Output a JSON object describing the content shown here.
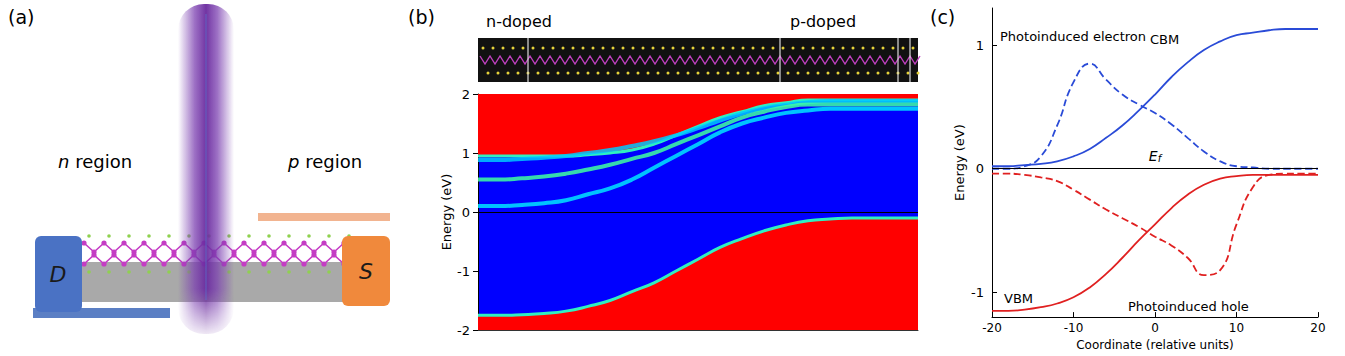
{
  "panel_labels": [
    "(a)",
    "(b)",
    "(c)"
  ],
  "diagram": {
    "regions": [
      "n region",
      "p region"
    ],
    "drain": "D",
    "source": "S"
  },
  "chart_data": [
    {
      "type": "area",
      "top_labels": [
        "n-doped",
        "p-doped"
      ],
      "ylabel": "Energy (eV)",
      "x": [
        0,
        1,
        2,
        3,
        4,
        5,
        6,
        7,
        8,
        9,
        10,
        11,
        12,
        13,
        14,
        15,
        16,
        17,
        18,
        19,
        20
      ],
      "xlim": [
        0,
        20
      ],
      "ylim": [
        -2,
        2
      ],
      "yticks": [
        -2,
        -1,
        0,
        1,
        2
      ],
      "tick_labels": "y",
      "hline": 0,
      "series": [
        {
          "type": "area_above",
          "color": "#ff0000",
          "values": [
            0.95,
            0.95,
            0.95,
            0.95,
            0.95,
            0.97,
            1.0,
            1.05,
            1.15,
            1.3,
            1.45,
            1.6,
            1.7,
            1.8,
            1.85,
            1.9,
            1.9,
            1.9,
            1.9,
            1.9,
            1.9
          ]
        },
        {
          "type": "area_below",
          "color": "#ff0000",
          "values": [
            -1.75,
            -1.75,
            -1.74,
            -1.72,
            -1.68,
            -1.6,
            -1.5,
            -1.35,
            -1.2,
            -1.0,
            -0.8,
            -0.6,
            -0.45,
            -0.32,
            -0.22,
            -0.15,
            -0.12,
            -0.1,
            -0.1,
            -0.1,
            -0.1
          ]
        },
        {
          "type": "line",
          "color": "#00c8ff",
          "values": [
            0.88,
            0.88,
            0.9,
            0.92,
            0.95,
            1.0,
            1.05,
            1.12,
            1.2,
            1.3,
            1.42,
            1.55,
            1.67,
            1.76,
            1.82,
            1.86,
            1.88,
            1.88,
            1.88,
            1.88,
            1.88
          ]
        },
        {
          "type": "line",
          "color": "#40ffa0",
          "values": [
            0.55,
            0.55,
            0.57,
            0.6,
            0.65,
            0.72,
            0.8,
            0.9,
            1.0,
            1.15,
            1.3,
            1.45,
            1.6,
            1.7,
            1.78,
            1.82,
            1.82,
            1.82,
            1.82,
            1.82,
            1.82
          ]
        },
        {
          "type": "line",
          "color": "#00e5ff",
          "values": [
            0.1,
            0.1,
            0.12,
            0.15,
            0.2,
            0.3,
            0.4,
            0.55,
            0.75,
            0.95,
            1.15,
            1.35,
            1.5,
            1.6,
            1.68,
            1.72,
            1.75,
            1.75,
            1.75,
            1.75,
            1.75
          ]
        }
      ]
    },
    {
      "type": "line",
      "xlabel": "Coordinate (relative units)",
      "ylabel": "Energy (eV)",
      "x": [
        -20,
        -18,
        -16,
        -14,
        -12,
        -10,
        -8,
        -6,
        -4,
        -2,
        0,
        2,
        4,
        6,
        8,
        10,
        12,
        14,
        16,
        18,
        20
      ],
      "xlim": [
        -20,
        20
      ],
      "xticks": [
        -20,
        -10,
        0,
        10,
        20
      ],
      "ylim": [
        -1.2,
        1.3
      ],
      "yticks": [
        -1,
        0,
        1
      ],
      "hline": 0,
      "hline_label": {
        "text": "E",
        "subscript": "f"
      },
      "series": [
        {
          "name": "Photoinduced electron",
          "color": "#2a4bd7",
          "line_style": "dashed",
          "values": [
            0,
            0,
            0.02,
            0.1,
            0.35,
            0.7,
            0.85,
            0.72,
            0.6,
            0.52,
            0.45,
            0.36,
            0.25,
            0.14,
            0.06,
            0.02,
            0.01,
            0,
            0,
            0,
            0
          ]
        },
        {
          "name": "CBM",
          "color": "#2a4bd7",
          "line_style": "solid",
          "values": [
            0.02,
            0.02,
            0.03,
            0.04,
            0.06,
            0.1,
            0.16,
            0.25,
            0.35,
            0.47,
            0.6,
            0.74,
            0.86,
            0.96,
            1.03,
            1.08,
            1.1,
            1.12,
            1.13,
            1.13,
            1.13
          ]
        },
        {
          "name": "VBM",
          "color": "#e02020",
          "line_style": "solid",
          "values": [
            -1.15,
            -1.15,
            -1.14,
            -1.12,
            -1.09,
            -1.04,
            -0.96,
            -0.85,
            -0.72,
            -0.58,
            -0.45,
            -0.32,
            -0.21,
            -0.13,
            -0.08,
            -0.06,
            -0.05,
            -0.05,
            -0.05,
            -0.05,
            -0.05
          ]
        },
        {
          "name": "Photoinduced hole",
          "color": "#e02020",
          "line_style": "dashed",
          "values": [
            -0.04,
            -0.04,
            -0.05,
            -0.07,
            -0.1,
            -0.17,
            -0.25,
            -0.33,
            -0.4,
            -0.47,
            -0.55,
            -0.62,
            -0.72,
            -0.86,
            -0.82,
            -0.45,
            -0.15,
            -0.05,
            -0.04,
            -0.04,
            -0.04
          ]
        }
      ]
    }
  ]
}
